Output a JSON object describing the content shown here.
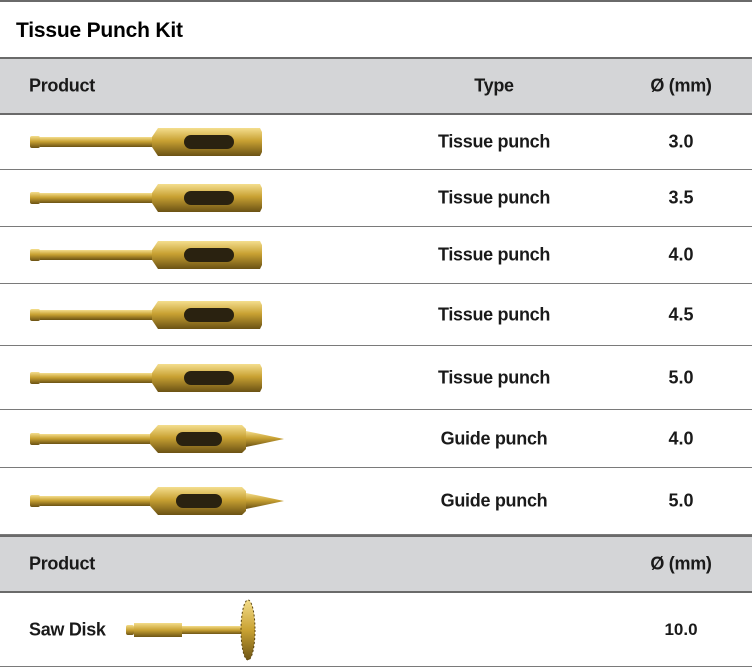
{
  "title": "Tissue Punch Kit",
  "table1": {
    "headers": {
      "product": "Product",
      "type": "Type",
      "diameter": "Ø (mm)"
    },
    "rows": [
      {
        "type": "Tissue punch",
        "diameter": "3.0",
        "icon": "tissue-punch-image"
      },
      {
        "type": "Tissue punch",
        "diameter": "3.5",
        "icon": "tissue-punch-image"
      },
      {
        "type": "Tissue punch",
        "diameter": "4.0",
        "icon": "tissue-punch-image"
      },
      {
        "type": "Tissue punch",
        "diameter": "4.5",
        "icon": "tissue-punch-image"
      },
      {
        "type": "Tissue punch",
        "diameter": "5.0",
        "icon": "tissue-punch-image"
      },
      {
        "type": "Guide punch",
        "diameter": "4.0",
        "icon": "guide-punch-image"
      },
      {
        "type": "Guide punch",
        "diameter": "5.0",
        "icon": "guide-punch-image"
      }
    ]
  },
  "table2": {
    "headers": {
      "product": "Product",
      "diameter": "Ø (mm)"
    },
    "rows": [
      {
        "product": "Saw Disk",
        "diameter": "10.0",
        "icon": "saw-disk-image"
      }
    ]
  },
  "colors": {
    "header_bg": "#d4d5d7",
    "gold": "#c9a233",
    "border": "#6a6a6a"
  }
}
